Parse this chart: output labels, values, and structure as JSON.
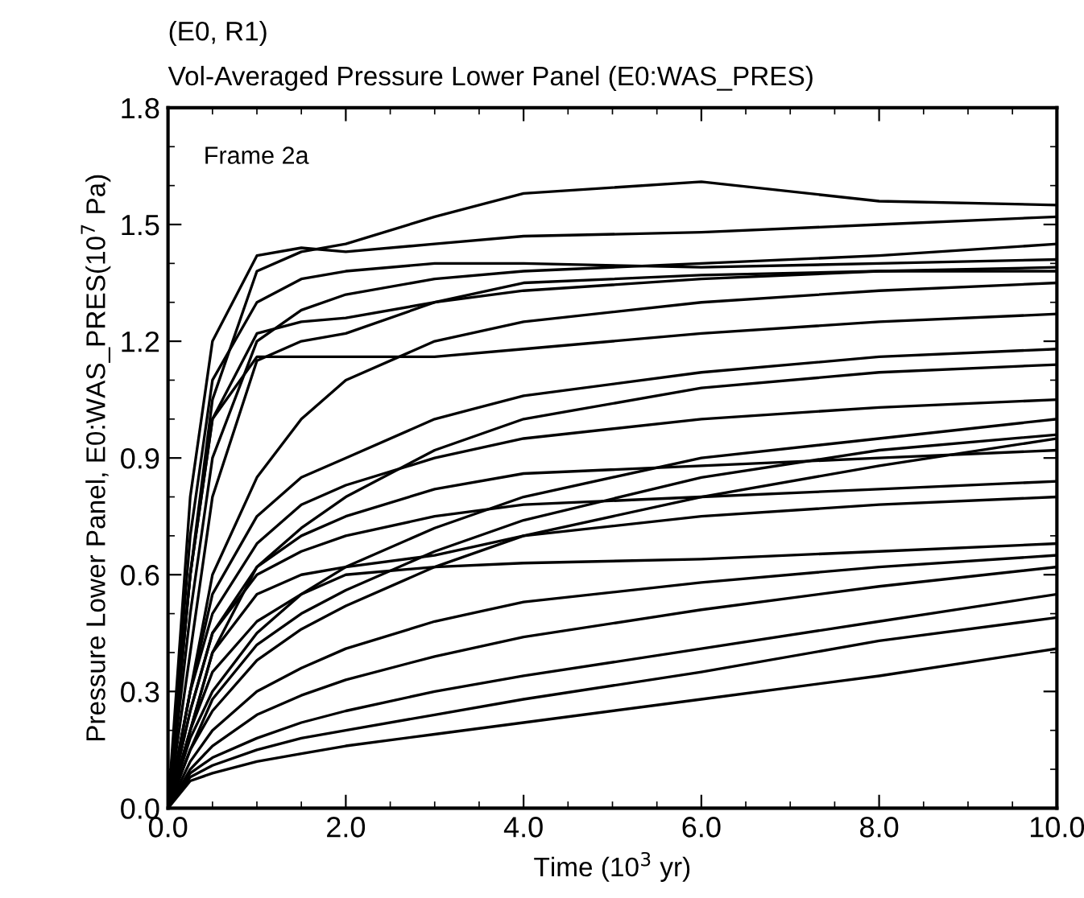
{
  "chart_data": {
    "type": "line",
    "title": "(E0, R1)",
    "subtitle": "Vol-Averaged Pressure Lower Panel (E0:WAS_PRES)",
    "xlabel": "Time (10$^{3}$ yr)",
    "ylabel": "Pressure Lower Panel, E0:WAS_PRES(10$^{7}$ Pa)",
    "annotations": [
      "Frame 2a"
    ],
    "x": [
      0,
      0.25,
      0.5,
      1,
      1.5,
      2,
      3,
      4,
      6,
      8,
      10
    ],
    "series": [
      {
        "color": "#000000",
        "values": [
          0,
          0.6,
          1.05,
          1.38,
          1.43,
          1.45,
          1.52,
          1.58,
          1.61,
          1.56,
          1.55
        ]
      },
      {
        "color": "#000000",
        "values": [
          0,
          0.8,
          1.2,
          1.42,
          1.44,
          1.43,
          1.45,
          1.47,
          1.48,
          1.5,
          1.52
        ]
      },
      {
        "color": "#000000",
        "values": [
          0,
          0.7,
          1.1,
          1.3,
          1.36,
          1.38,
          1.4,
          1.4,
          1.39,
          1.4,
          1.41
        ]
      },
      {
        "color": "#000000",
        "values": [
          0,
          0.6,
          1.0,
          1.22,
          1.25,
          1.26,
          1.3,
          1.33,
          1.36,
          1.38,
          1.39
        ]
      },
      {
        "color": "#000000",
        "values": [
          0,
          0.6,
          1.0,
          1.16,
          1.16,
          1.16,
          1.16,
          1.18,
          1.22,
          1.25,
          1.27
        ]
      },
      {
        "color": "#000000",
        "values": [
          0,
          0.4,
          0.8,
          1.15,
          1.2,
          1.22,
          1.3,
          1.35,
          1.37,
          1.38,
          1.38
        ]
      },
      {
        "color": "#000000",
        "values": [
          0,
          0.5,
          0.9,
          1.2,
          1.28,
          1.32,
          1.36,
          1.38,
          1.4,
          1.42,
          1.45
        ]
      },
      {
        "color": "#000000",
        "values": [
          0,
          0.3,
          0.6,
          0.85,
          1.0,
          1.1,
          1.2,
          1.25,
          1.3,
          1.33,
          1.35
        ]
      },
      {
        "color": "#000000",
        "values": [
          0,
          0.3,
          0.55,
          0.75,
          0.85,
          0.9,
          1.0,
          1.06,
          1.12,
          1.16,
          1.18
        ]
      },
      {
        "color": "#000000",
        "values": [
          0,
          0.2,
          0.4,
          0.62,
          0.72,
          0.8,
          0.92,
          1.0,
          1.08,
          1.12,
          1.14
        ]
      },
      {
        "color": "#000000",
        "values": [
          0,
          0.3,
          0.5,
          0.68,
          0.78,
          0.83,
          0.9,
          0.95,
          1.0,
          1.03,
          1.05
        ]
      },
      {
        "color": "#000000",
        "values": [
          0,
          0.25,
          0.45,
          0.62,
          0.7,
          0.75,
          0.82,
          0.86,
          0.88,
          0.9,
          0.92
        ]
      },
      {
        "color": "#000000",
        "values": [
          0,
          0.25,
          0.45,
          0.6,
          0.66,
          0.7,
          0.75,
          0.78,
          0.8,
          0.82,
          0.84
        ]
      },
      {
        "color": "#000000",
        "values": [
          0,
          0.2,
          0.4,
          0.55,
          0.6,
          0.62,
          0.65,
          0.7,
          0.75,
          0.78,
          0.8
        ]
      },
      {
        "color": "#000000",
        "values": [
          0,
          0.2,
          0.35,
          0.48,
          0.55,
          0.6,
          0.62,
          0.63,
          0.64,
          0.66,
          0.68
        ]
      },
      {
        "color": "#000000",
        "values": [
          0,
          0.18,
          0.3,
          0.45,
          0.55,
          0.62,
          0.72,
          0.8,
          0.9,
          0.95,
          1.0
        ]
      },
      {
        "color": "#000000",
        "values": [
          0,
          0.15,
          0.28,
          0.42,
          0.5,
          0.56,
          0.66,
          0.74,
          0.85,
          0.92,
          0.96
        ]
      },
      {
        "color": "#000000",
        "values": [
          0,
          0.15,
          0.25,
          0.38,
          0.46,
          0.52,
          0.62,
          0.7,
          0.8,
          0.88,
          0.95
        ]
      },
      {
        "color": "#000000",
        "values": [
          0,
          0.12,
          0.2,
          0.3,
          0.36,
          0.41,
          0.48,
          0.53,
          0.58,
          0.62,
          0.65
        ]
      },
      {
        "color": "#000000",
        "values": [
          0,
          0.1,
          0.16,
          0.24,
          0.29,
          0.33,
          0.39,
          0.44,
          0.51,
          0.57,
          0.62
        ]
      },
      {
        "color": "#000000",
        "values": [
          0,
          0.09,
          0.13,
          0.18,
          0.22,
          0.25,
          0.3,
          0.34,
          0.41,
          0.48,
          0.55
        ]
      },
      {
        "color": "#000000",
        "values": [
          0,
          0.08,
          0.11,
          0.15,
          0.18,
          0.2,
          0.24,
          0.28,
          0.35,
          0.43,
          0.49
        ]
      },
      {
        "color": "#000000",
        "values": [
          0,
          0.07,
          0.09,
          0.12,
          0.14,
          0.16,
          0.19,
          0.22,
          0.28,
          0.34,
          0.41
        ]
      }
    ],
    "xlim": [
      0,
      10
    ],
    "xticks": [
      {
        "value": 0,
        "label": "0.0"
      },
      {
        "value": 2,
        "label": "2.0"
      },
      {
        "value": 4,
        "label": "4.0"
      },
      {
        "value": 6,
        "label": "6.0"
      },
      {
        "value": 8,
        "label": "8.0"
      },
      {
        "value": 10,
        "label": "10.0"
      }
    ],
    "ylim": [
      0,
      1.8
    ],
    "yticks": [
      {
        "value": 0,
        "label": "0.0"
      },
      0.3,
      0.6,
      0.9,
      1.2,
      1.5,
      1.8
    ],
    "grid": false,
    "legend": false,
    "marker": "none",
    "line_style": "solid"
  }
}
